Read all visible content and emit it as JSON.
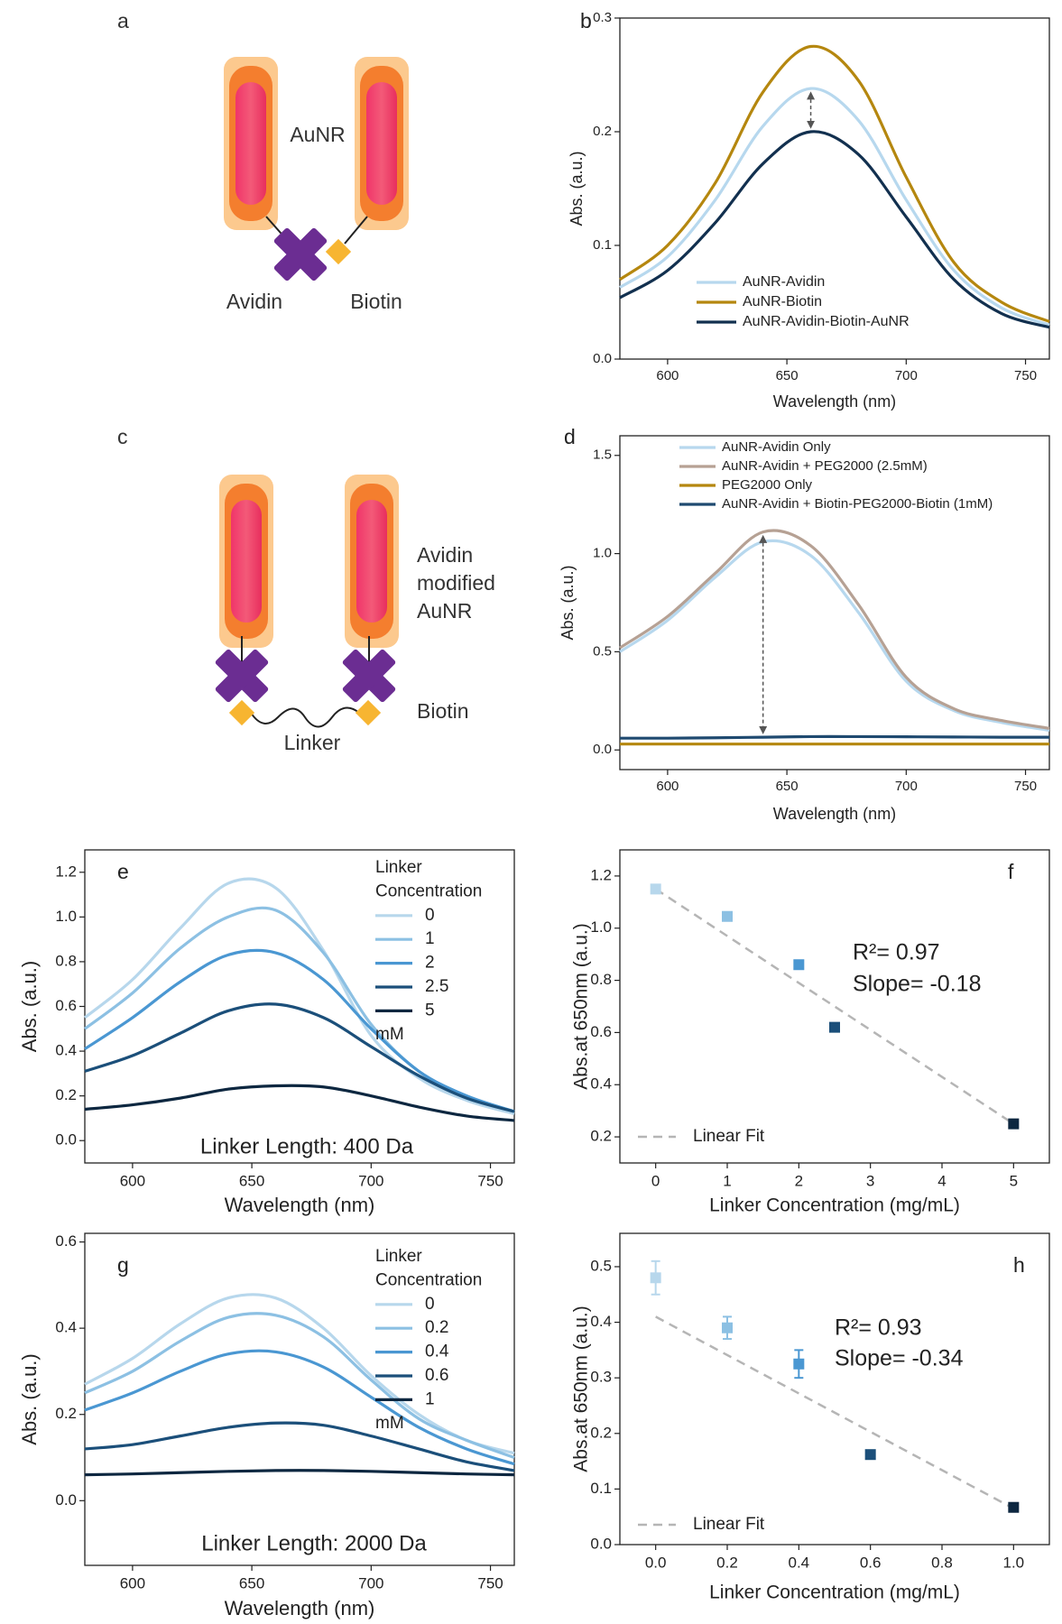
{
  "diagrams": [
    {
      "label": "a",
      "texts": [
        "AuNR",
        "Avidin",
        "Biotin"
      ]
    },
    {
      "label": "c",
      "texts": [
        "Avidin",
        "modified",
        "AuNR",
        "Biotin",
        "Linker"
      ]
    }
  ],
  "chart_data": [
    {
      "type": "line",
      "label": "b",
      "xlabel": "Wavelength (nm)",
      "ylabel": "Abs. (a.u.)",
      "x": [
        580,
        600,
        620,
        640,
        660,
        680,
        700,
        720,
        740,
        760
      ],
      "series": [
        {
          "name": "AuNR-Avidin",
          "color": "#b7d8ee",
          "values": [
            0.063,
            0.09,
            0.14,
            0.205,
            0.238,
            0.21,
            0.14,
            0.078,
            0.045,
            0.03
          ]
        },
        {
          "name": "AuNR-Biotin",
          "color": "#b5870f",
          "values": [
            0.07,
            0.1,
            0.155,
            0.235,
            0.275,
            0.245,
            0.16,
            0.085,
            0.05,
            0.033
          ]
        },
        {
          "name": "AuNR-Avidin-Biotin-AuNR",
          "color": "#12304f",
          "values": [
            0.054,
            0.078,
            0.12,
            0.172,
            0.2,
            0.18,
            0.125,
            0.07,
            0.04,
            0.028
          ]
        }
      ],
      "xlim": [
        580,
        760
      ],
      "xticks": [
        600,
        650,
        700,
        750
      ],
      "ylim": [
        0,
        0.3
      ],
      "yticks": [
        {
          "value": 0,
          "label": "0.0"
        },
        0.1,
        0.2,
        0.3
      ],
      "legend": "lower left"
    },
    {
      "type": "line",
      "label": "d",
      "xlabel": "Wavelength (nm)",
      "ylabel": "Abs. (a.u.)",
      "x": [
        580,
        600,
        620,
        640,
        660,
        680,
        700,
        720,
        740,
        760
      ],
      "series": [
        {
          "name": "AuNR-Avidin Only",
          "color": "#b7d8ee",
          "values": [
            0.5,
            0.66,
            0.88,
            1.06,
            0.99,
            0.7,
            0.35,
            0.2,
            0.14,
            0.1
          ]
        },
        {
          "name": "AuNR-Avidin + PEG2000 (2.5mM)",
          "color": "#b6a194",
          "values": [
            0.52,
            0.68,
            0.9,
            1.11,
            1.04,
            0.74,
            0.37,
            0.21,
            0.15,
            0.11
          ]
        },
        {
          "name": "PEG2000 Only",
          "color": "#b5870f",
          "values": [
            0.03,
            0.03,
            0.03,
            0.03,
            0.03,
            0.03,
            0.03,
            0.03,
            0.03,
            0.03
          ]
        },
        {
          "name": "AuNR-Avidin + Biotin-PEG2000-Biotin (1mM)",
          "color": "#1f4a70",
          "values": [
            0.06,
            0.06,
            0.062,
            0.065,
            0.068,
            0.068,
            0.067,
            0.066,
            0.065,
            0.065
          ]
        }
      ],
      "xlim": [
        580,
        760
      ],
      "xticks": [
        600,
        650,
        700,
        750
      ],
      "ylim": [
        -0.1,
        1.6
      ],
      "yticks": [
        {
          "value": 0,
          "label": "0.0"
        },
        0.5,
        {
          "value": 1,
          "label": "1.0"
        },
        1.5
      ],
      "legend": "upper left"
    },
    {
      "type": "line",
      "label": "e",
      "xlabel": "Wavelength (nm)",
      "ylabel": "Abs. (a.u.)",
      "legend_title": [
        "Linker",
        "Concentration"
      ],
      "legend_unit": "mM",
      "annotations": [
        "Linker Length: 400 Da"
      ],
      "x": [
        580,
        600,
        620,
        640,
        660,
        680,
        700,
        720,
        740,
        760
      ],
      "series": [
        {
          "name": "0",
          "color": "#b7d7ec",
          "values": [
            0.55,
            0.72,
            0.95,
            1.15,
            1.13,
            0.85,
            0.47,
            0.28,
            0.18,
            0.12
          ]
        },
        {
          "name": "1",
          "color": "#8cc0e3",
          "values": [
            0.5,
            0.66,
            0.86,
            1.0,
            1.03,
            0.84,
            0.52,
            0.31,
            0.2,
            0.13
          ]
        },
        {
          "name": "2",
          "color": "#4a97d2",
          "values": [
            0.41,
            0.55,
            0.71,
            0.83,
            0.84,
            0.72,
            0.5,
            0.31,
            0.2,
            0.13
          ]
        },
        {
          "name": "2.5",
          "color": "#1b4f7a",
          "values": [
            0.31,
            0.38,
            0.48,
            0.58,
            0.61,
            0.55,
            0.42,
            0.29,
            0.19,
            0.13
          ]
        },
        {
          "name": "5",
          "color": "#0d2740",
          "values": [
            0.14,
            0.16,
            0.19,
            0.23,
            0.245,
            0.24,
            0.2,
            0.15,
            0.11,
            0.09
          ]
        }
      ],
      "xlim": [
        580,
        760
      ],
      "xticks": [
        600,
        650,
        700,
        750
      ],
      "ylim": [
        -0.1,
        1.3
      ],
      "yticks": [
        {
          "value": 0,
          "label": "0.0"
        },
        0.2,
        0.4,
        0.6,
        0.8,
        {
          "value": 1,
          "label": "1.0"
        },
        1.2
      ],
      "legend": "upper right"
    },
    {
      "type": "scatter",
      "label": "f",
      "xlabel": "Linker Concentration (mg/mL)",
      "ylabel": "Abs.at 650nm (a.u.)",
      "annotations": [
        "R²= 0.97",
        "Slope= -0.18"
      ],
      "x": [
        0,
        1,
        2,
        2.5,
        5
      ],
      "values": [
        1.15,
        1.045,
        0.86,
        0.62,
        0.25
      ],
      "errors": [
        0.01,
        0.015,
        0.015,
        0.012,
        0.01
      ],
      "colors": [
        "#b7d7ec",
        "#8cc0e3",
        "#4a97d2",
        "#1b4f7a",
        "#0d2740"
      ],
      "fit": {
        "name": "Linear Fit",
        "color": "#b5b5b5",
        "x": [
          0,
          5
        ],
        "values": [
          1.15,
          0.25
        ]
      },
      "xlim": [
        -0.5,
        5.5
      ],
      "xticks": [
        0,
        1,
        2,
        3,
        4,
        5
      ],
      "ylim": [
        0.1,
        1.3
      ],
      "yticks": [
        0.2,
        0.4,
        0.6,
        0.8,
        {
          "value": 1,
          "label": "1.0"
        },
        1.2
      ],
      "legend": "lower left"
    },
    {
      "type": "line",
      "label": "g",
      "xlabel": "Wavelength (nm)",
      "ylabel": "Abs. (a.u.)",
      "legend_title": [
        "Linker",
        "Concentration"
      ],
      "legend_unit": "mM",
      "annotations": [
        "Linker Length: 2000 Da"
      ],
      "x": [
        580,
        600,
        620,
        640,
        660,
        680,
        700,
        720,
        740,
        760
      ],
      "series": [
        {
          "name": "0",
          "color": "#b7d7ec",
          "values": [
            0.27,
            0.33,
            0.41,
            0.47,
            0.47,
            0.4,
            0.29,
            0.2,
            0.14,
            0.11
          ]
        },
        {
          "name": "0.2",
          "color": "#8cc0e3",
          "values": [
            0.25,
            0.3,
            0.37,
            0.425,
            0.43,
            0.38,
            0.28,
            0.19,
            0.14,
            0.1
          ]
        },
        {
          "name": "0.4",
          "color": "#4a97d2",
          "values": [
            0.21,
            0.25,
            0.3,
            0.34,
            0.345,
            0.31,
            0.24,
            0.17,
            0.12,
            0.085
          ]
        },
        {
          "name": "0.6",
          "color": "#1b4f7a",
          "values": [
            0.12,
            0.13,
            0.15,
            0.17,
            0.18,
            0.175,
            0.15,
            0.12,
            0.09,
            0.07
          ]
        },
        {
          "name": "1",
          "color": "#0d2740",
          "values": [
            0.06,
            0.062,
            0.065,
            0.068,
            0.07,
            0.07,
            0.068,
            0.065,
            0.062,
            0.06
          ]
        }
      ],
      "xlim": [
        580,
        760
      ],
      "xticks": [
        600,
        650,
        700,
        750
      ],
      "ylim": [
        -0.15,
        0.62
      ],
      "yticks": [
        {
          "value": 0,
          "label": "0.0"
        },
        0.2,
        0.4,
        0.6
      ],
      "legend": "upper right"
    },
    {
      "type": "scatter",
      "label": "h",
      "xlabel": "Linker Concentration (mg/mL)",
      "ylabel": "Abs.at 650nm (a.u.)",
      "annotations": [
        "R²= 0.93",
        "Slope= -0.34"
      ],
      "x": [
        0,
        0.2,
        0.4,
        0.6,
        1
      ],
      "values": [
        0.48,
        0.39,
        0.325,
        0.162,
        0.067
      ],
      "errors": [
        0.03,
        0.02,
        0.025,
        0.005,
        0.005
      ],
      "colors": [
        "#b7d7ec",
        "#8cc0e3",
        "#4a97d2",
        "#1b4f7a",
        "#0d2740"
      ],
      "fit": {
        "name": "Linear Fit",
        "color": "#b5b5b5",
        "x": [
          0,
          1
        ],
        "values": [
          0.41,
          0.065
        ]
      },
      "xlim": [
        -0.1,
        1.1
      ],
      "xticks": [
        {
          "value": 0,
          "label": "0.0"
        },
        0.2,
        0.4,
        0.6,
        0.8,
        {
          "value": 1,
          "label": "1.0"
        }
      ],
      "ylim": [
        0,
        0.56
      ],
      "yticks": [
        {
          "value": 0,
          "label": "0.0"
        },
        0.1,
        0.2,
        0.3,
        0.4,
        0.5
      ],
      "legend": "lower left"
    }
  ]
}
